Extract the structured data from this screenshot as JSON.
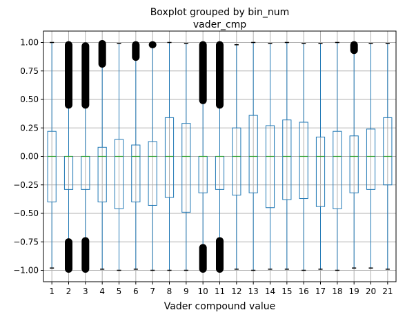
{
  "chart_data": {
    "type": "boxplot",
    "title": "Boxplot grouped by bin_num",
    "subtitle": "vader_cmp",
    "xlabel": "Vader compound value",
    "ylabel": "",
    "ylim": [
      -1.1,
      1.1
    ],
    "yticks": [
      -1.0,
      -0.75,
      -0.5,
      -0.25,
      0.0,
      0.25,
      0.5,
      0.75,
      1.0
    ],
    "ytick_labels": [
      "−1.00",
      "−0.75",
      "−0.50",
      "−0.25",
      "0.00",
      "0.25",
      "0.50",
      "0.75",
      "1.00"
    ],
    "grid": true,
    "colors": {
      "box": "#1f77b4",
      "median": "#2ca02c",
      "grid": "#b0b0b0",
      "flier": "#000000"
    },
    "categories": [
      "1",
      "2",
      "3",
      "4",
      "5",
      "6",
      "7",
      "8",
      "9",
      "10",
      "11",
      "12",
      "13",
      "14",
      "15",
      "16",
      "17",
      "18",
      "19",
      "20",
      "21"
    ],
    "boxes": [
      {
        "q1": -0.4,
        "median": 0.0,
        "q3": 0.22,
        "whislo": -0.98,
        "whishi": 1.0,
        "fliers_low": null,
        "fliers_high": null
      },
      {
        "q1": -0.29,
        "median": 0.0,
        "q3": 0.0,
        "whislo": -0.73,
        "whishi": 0.43,
        "fliers_low": [
          -1.0,
          -0.74
        ],
        "fliers_high": [
          0.44,
          0.99
        ]
      },
      {
        "q1": -0.29,
        "median": 0.0,
        "q3": 0.0,
        "whislo": -0.72,
        "whishi": 0.43,
        "fliers_low": [
          -1.0,
          -0.73
        ],
        "fliers_high": [
          0.44,
          0.98
        ]
      },
      {
        "q1": -0.4,
        "median": 0.0,
        "q3": 0.08,
        "whislo": -0.99,
        "whishi": 0.79,
        "fliers_low": null,
        "fliers_high": [
          0.8,
          1.0
        ]
      },
      {
        "q1": -0.46,
        "median": 0.0,
        "q3": 0.15,
        "whislo": -1.0,
        "whishi": 0.99,
        "fliers_low": null,
        "fliers_high": null
      },
      {
        "q1": -0.4,
        "median": 0.0,
        "q3": 0.1,
        "whislo": -0.99,
        "whishi": 0.85,
        "fliers_low": null,
        "fliers_high": [
          0.86,
          0.99
        ]
      },
      {
        "q1": -0.43,
        "median": 0.0,
        "q3": 0.13,
        "whislo": -1.0,
        "whishi": 0.96,
        "fliers_low": null,
        "fliers_high": [
          0.97,
          0.99
        ]
      },
      {
        "q1": -0.36,
        "median": 0.0,
        "q3": 0.34,
        "whislo": -1.0,
        "whishi": 1.0,
        "fliers_low": null,
        "fliers_high": null
      },
      {
        "q1": -0.49,
        "median": 0.0,
        "q3": 0.29,
        "whislo": -1.0,
        "whishi": 0.99,
        "fliers_low": null,
        "fliers_high": null
      },
      {
        "q1": -0.32,
        "median": 0.0,
        "q3": 0.0,
        "whislo": -0.78,
        "whishi": 0.47,
        "fliers_low": [
          -1.0,
          -0.79
        ],
        "fliers_high": [
          0.48,
          0.99
        ]
      },
      {
        "q1": -0.29,
        "median": 0.0,
        "q3": 0.0,
        "whislo": -0.72,
        "whishi": 0.43,
        "fliers_low": [
          -1.0,
          -0.73
        ],
        "fliers_high": [
          0.44,
          0.99
        ]
      },
      {
        "q1": -0.34,
        "median": 0.0,
        "q3": 0.25,
        "whislo": -0.99,
        "whishi": 0.98,
        "fliers_low": null,
        "fliers_high": null
      },
      {
        "q1": -0.32,
        "median": 0.0,
        "q3": 0.36,
        "whislo": -1.0,
        "whishi": 1.0,
        "fliers_low": null,
        "fliers_high": null
      },
      {
        "q1": -0.45,
        "median": 0.0,
        "q3": 0.27,
        "whislo": -0.99,
        "whishi": 0.99,
        "fliers_low": null,
        "fliers_high": null
      },
      {
        "q1": -0.38,
        "median": 0.0,
        "q3": 0.32,
        "whislo": -0.99,
        "whishi": 1.0,
        "fliers_low": null,
        "fliers_high": null
      },
      {
        "q1": -0.37,
        "median": 0.0,
        "q3": 0.3,
        "whislo": -1.0,
        "whishi": 0.99,
        "fliers_low": null,
        "fliers_high": null
      },
      {
        "q1": -0.44,
        "median": 0.0,
        "q3": 0.17,
        "whislo": -0.99,
        "whishi": 0.99,
        "fliers_low": null,
        "fliers_high": null
      },
      {
        "q1": -0.46,
        "median": 0.0,
        "q3": 0.22,
        "whislo": -1.0,
        "whishi": 1.0,
        "fliers_low": null,
        "fliers_high": null
      },
      {
        "q1": -0.32,
        "median": 0.0,
        "q3": 0.18,
        "whislo": -0.98,
        "whishi": 0.91,
        "fliers_low": null,
        "fliers_high": [
          0.92,
          0.99
        ]
      },
      {
        "q1": -0.29,
        "median": 0.0,
        "q3": 0.24,
        "whislo": -0.98,
        "whishi": 0.99,
        "fliers_low": null,
        "fliers_high": null
      },
      {
        "q1": -0.25,
        "median": 0.0,
        "q3": 0.34,
        "whislo": -0.99,
        "whishi": 0.99,
        "fliers_low": null,
        "fliers_high": null
      }
    ]
  }
}
